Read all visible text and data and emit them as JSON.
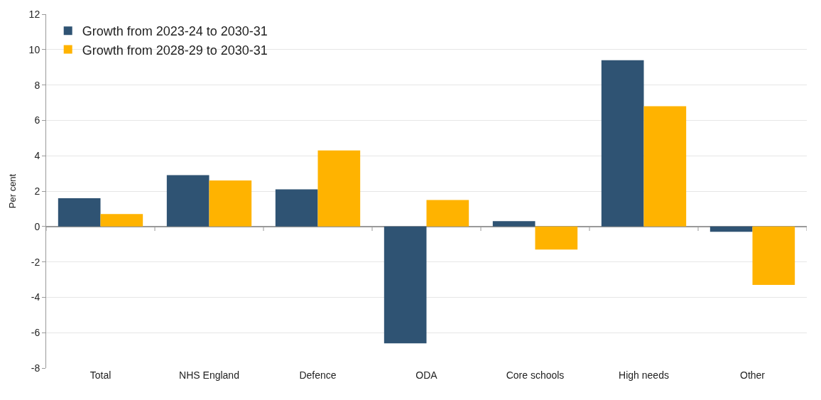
{
  "chart_data": {
    "type": "bar",
    "ylabel": "Per cent",
    "categories": [
      "Total",
      "NHS England",
      "Defence",
      "ODA",
      "Core schools",
      "High needs",
      "Other"
    ],
    "series": [
      {
        "name": "Growth from 2023-24 to 2030-31",
        "color": "#2f5373",
        "values": [
          1.6,
          2.9,
          2.1,
          -6.6,
          0.3,
          9.4,
          -0.3
        ]
      },
      {
        "name": "Growth from 2028-29 to 2030-31",
        "color": "#ffb300",
        "values": [
          0.7,
          2.6,
          4.3,
          1.5,
          -1.3,
          6.8,
          -3.3
        ]
      }
    ],
    "ylim": [
      -8,
      12
    ],
    "yticks": [
      -8,
      -6,
      -4,
      -2,
      0,
      2,
      4,
      6,
      8,
      10,
      12
    ],
    "grid": "y",
    "legend": "top left"
  }
}
